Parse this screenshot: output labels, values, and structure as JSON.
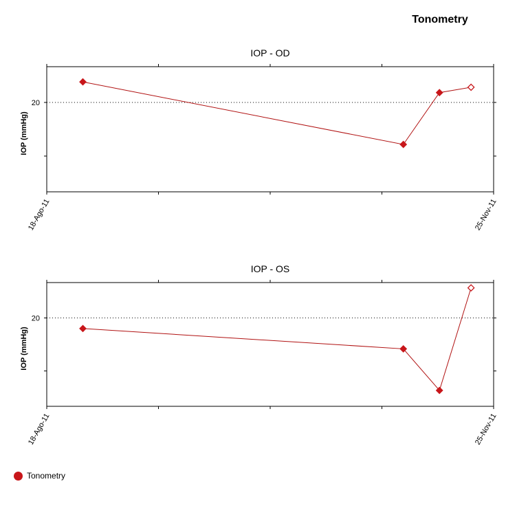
{
  "page_title": "Tonometry",
  "colors": {
    "series": "#c8161a",
    "line": "#b01010"
  },
  "legend": {
    "label": "Tonometry"
  },
  "chart_data": [
    {
      "type": "line",
      "title": "IOP - OD",
      "ylabel": "IOP (mmHg)",
      "xlabel": "",
      "x_tick_labels": [
        "18-Ago-11",
        "25-Nov-11"
      ],
      "y_tick_labels": [
        "20"
      ],
      "reference_line": 20,
      "grid": false,
      "xlim": [
        "2011-08-18",
        "2011-11-25"
      ],
      "ylim": [
        10,
        24
      ],
      "series": [
        {
          "x": [
            "2011-08-26",
            "2011-11-05",
            "2011-11-13",
            "2011-11-20"
          ],
          "y": [
            22.3,
            15.3,
            21.1,
            21.7
          ],
          "markers": [
            "filled",
            "filled",
            "filled",
            "open"
          ]
        }
      ]
    },
    {
      "type": "line",
      "title": "IOP - OS",
      "ylabel": "IOP (mmHg)",
      "xlabel": "",
      "x_tick_labels": [
        "18-Ago-11",
        "25-Nov-11"
      ],
      "y_tick_labels": [
        "20"
      ],
      "reference_line": 20,
      "grid": false,
      "xlim": [
        "2011-08-18",
        "2011-11-25"
      ],
      "ylim": [
        10,
        24
      ],
      "series": [
        {
          "x": [
            "2011-08-26",
            "2011-11-05",
            "2011-11-13",
            "2011-11-20"
          ],
          "y": [
            18.8,
            16.5,
            11.8,
            23.4
          ],
          "markers": [
            "filled",
            "filled",
            "filled",
            "open"
          ]
        }
      ]
    }
  ]
}
